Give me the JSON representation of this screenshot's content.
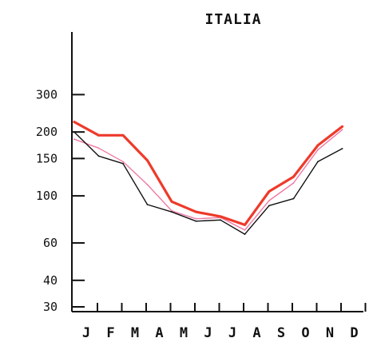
{
  "chart_data": {
    "type": "line",
    "title": "ITALIA",
    "xlabel": "",
    "ylabel": "",
    "categories": [
      "J",
      "F",
      "M",
      "A",
      "M",
      "J",
      "J",
      "A",
      "S",
      "O",
      "N",
      "D"
    ],
    "yscale": "log",
    "ylim": [
      30,
      350
    ],
    "yticks": [
      30,
      40,
      60,
      100,
      150,
      200,
      300
    ],
    "grid": false,
    "series": [
      {
        "color": "#ee3a2a",
        "values": [
          223,
          193,
          193,
          147,
          94,
          84,
          80,
          73,
          105,
          123,
          173,
          212
        ]
      },
      {
        "color": "#111111",
        "values": [
          200,
          154,
          142,
          91,
          84,
          76,
          77,
          66,
          90,
          97,
          145,
          167
        ]
      },
      {
        "color": "#f07aa6",
        "values": [
          185,
          168,
          145,
          113,
          85,
          78,
          79,
          69,
          95,
          115,
          165,
          205
        ]
      }
    ]
  }
}
